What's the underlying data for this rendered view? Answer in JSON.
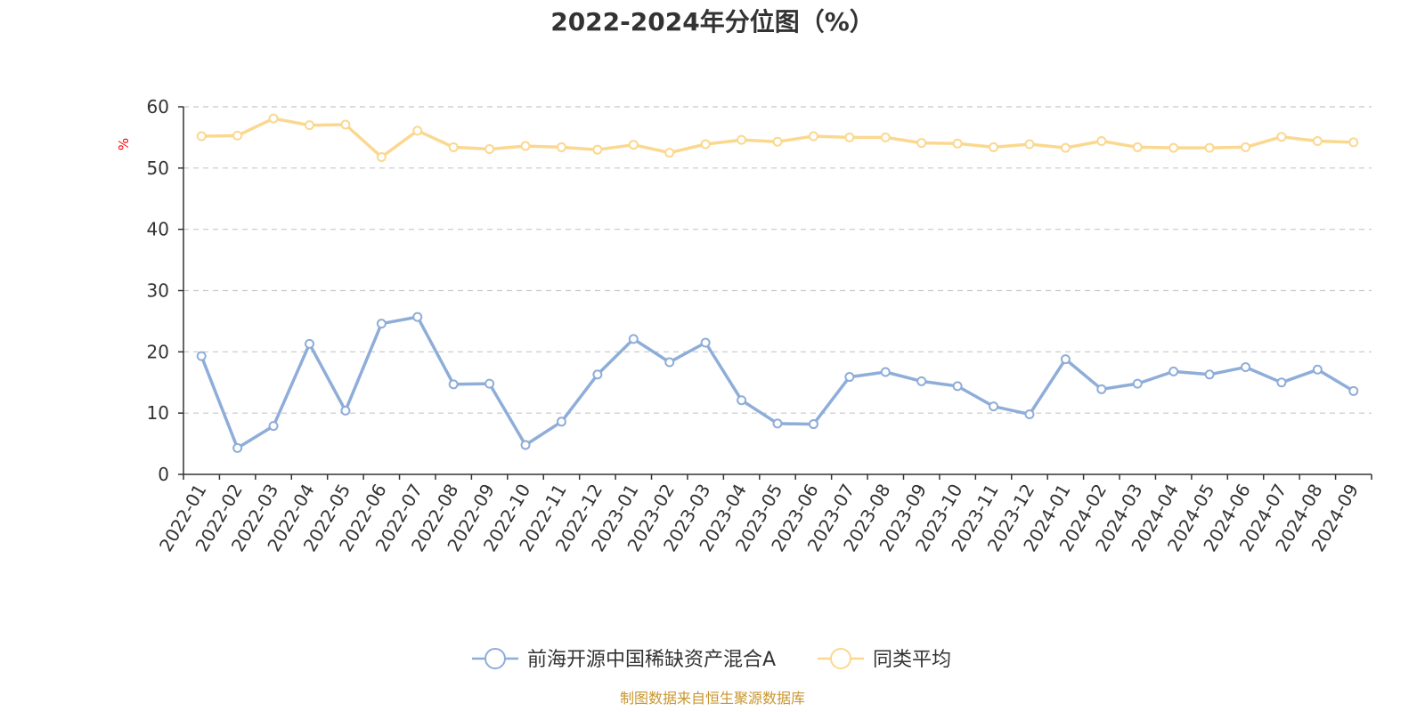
{
  "chart_data": {
    "type": "line",
    "title": "2022-2024年分位图（%）",
    "y_unit": "%",
    "ylim": [
      0,
      60
    ],
    "yticks": [
      0,
      10,
      20,
      30,
      40,
      50,
      60
    ],
    "grid": true,
    "legend_position": "bottom-center",
    "categories": [
      "2022-01",
      "2022-02",
      "2022-03",
      "2022-04",
      "2022-05",
      "2022-06",
      "2022-07",
      "2022-08",
      "2022-09",
      "2022-10",
      "2022-11",
      "2022-12",
      "2023-01",
      "2023-02",
      "2023-03",
      "2023-04",
      "2023-05",
      "2023-06",
      "2023-07",
      "2023-08",
      "2023-09",
      "2023-10",
      "2023-11",
      "2023-12",
      "2024-01",
      "2024-02",
      "2024-03",
      "2024-04",
      "2024-05",
      "2024-06",
      "2024-07",
      "2024-08",
      "2024-09"
    ],
    "series": [
      {
        "name": "前海开源中国稀缺资产混合A",
        "color": "#8eadd8",
        "values": [
          19.3,
          4.3,
          7.9,
          21.3,
          10.4,
          24.6,
          25.7,
          14.7,
          14.8,
          4.8,
          8.6,
          16.3,
          22.1,
          18.3,
          21.5,
          12.1,
          8.3,
          8.2,
          15.9,
          16.7,
          15.2,
          14.4,
          11.1,
          9.8,
          18.8,
          13.9,
          14.8,
          16.8,
          16.3,
          17.5,
          15.0,
          17.1,
          13.6
        ]
      },
      {
        "name": "同类平均",
        "color": "#fbd88f",
        "values": [
          55.2,
          55.3,
          58.1,
          57.0,
          57.1,
          51.8,
          56.1,
          53.4,
          53.1,
          53.6,
          53.4,
          53.0,
          53.8,
          52.5,
          53.9,
          54.6,
          54.3,
          55.2,
          55.0,
          55.0,
          54.1,
          54.0,
          53.4,
          53.9,
          53.3,
          54.4,
          53.4,
          53.3,
          53.3,
          53.4,
          55.1,
          54.4,
          54.2
        ]
      }
    ]
  },
  "footer": {
    "source_text": "制图数据来自恒生聚源数据库"
  }
}
